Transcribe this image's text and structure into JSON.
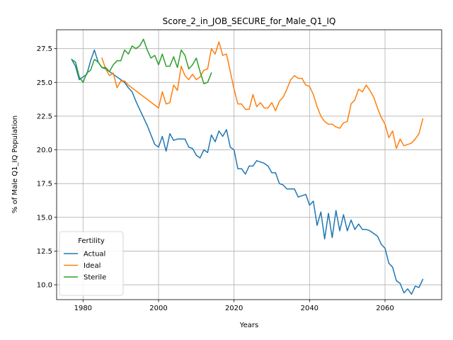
{
  "chart_data": {
    "type": "line",
    "title": "Score_2_in_JOB_SECURE_for_Male_Q1_IQ",
    "xlabel": "Years",
    "ylabel": "% of Male Q1_IQ Population",
    "xlim": [
      1973,
      2075
    ],
    "ylim": [
      8.9,
      28.9
    ],
    "xticks": [
      1980,
      2000,
      2020,
      2040,
      2060
    ],
    "yticks": [
      10.0,
      12.5,
      15.0,
      17.5,
      20.0,
      22.5,
      25.0,
      27.5
    ],
    "ytick_labels": [
      "10.0",
      "12.5",
      "15.0",
      "17.5",
      "20.0",
      "22.5",
      "25.0",
      "27.5"
    ],
    "grid": true,
    "legend": {
      "title": "Fertility",
      "placement": "bottom-left"
    },
    "series": [
      {
        "name": "Actual",
        "color": "#1f77b4",
        "points": [
          [
            1977,
            26.7
          ],
          [
            1978,
            26.2
          ],
          [
            1979,
            25.2
          ],
          [
            1980,
            25.4
          ],
          [
            1981,
            25.6
          ],
          [
            1982,
            26.6
          ],
          [
            1983,
            27.4
          ],
          [
            1984,
            26.5
          ],
          [
            1985,
            26.1
          ],
          [
            1986,
            26.0
          ],
          [
            1987,
            25.8
          ],
          [
            1988,
            25.6
          ],
          [
            1989,
            25.4
          ],
          [
            1990,
            25.2
          ],
          [
            1991,
            25.0
          ],
          [
            1992,
            24.6
          ],
          [
            1993,
            24.3
          ],
          [
            1994,
            23.6
          ],
          [
            1995,
            23.0
          ],
          [
            1996,
            22.4
          ],
          [
            1997,
            21.8
          ],
          [
            1998,
            21.1
          ],
          [
            1999,
            20.4
          ],
          [
            2000,
            20.2
          ],
          [
            2001,
            21.0
          ],
          [
            2002,
            19.9
          ],
          [
            2003,
            21.2
          ],
          [
            2004,
            20.7
          ],
          [
            2005,
            20.8
          ],
          [
            2006,
            20.8
          ],
          [
            2007,
            20.8
          ],
          [
            2008,
            20.2
          ],
          [
            2009,
            20.1
          ],
          [
            2010,
            19.6
          ],
          [
            2011,
            19.4
          ],
          [
            2012,
            20.0
          ],
          [
            2013,
            19.8
          ],
          [
            2014,
            21.1
          ],
          [
            2015,
            20.6
          ],
          [
            2016,
            21.4
          ],
          [
            2017,
            21.0
          ],
          [
            2018,
            21.5
          ],
          [
            2019,
            20.2
          ],
          [
            2020,
            20.0
          ],
          [
            2021,
            18.6
          ],
          [
            2022,
            18.6
          ],
          [
            2023,
            18.2
          ],
          [
            2024,
            18.8
          ],
          [
            2025,
            18.8
          ],
          [
            2026,
            19.2
          ],
          [
            2027,
            19.1
          ],
          [
            2028,
            19.0
          ],
          [
            2029,
            18.8
          ],
          [
            2030,
            18.3
          ],
          [
            2031,
            18.3
          ],
          [
            2032,
            17.5
          ],
          [
            2033,
            17.4
          ],
          [
            2034,
            17.1
          ],
          [
            2035,
            17.1
          ],
          [
            2036,
            17.1
          ],
          [
            2037,
            16.5
          ],
          [
            2038,
            16.6
          ],
          [
            2039,
            16.7
          ],
          [
            2040,
            15.9
          ],
          [
            2041,
            16.2
          ],
          [
            2042,
            14.4
          ],
          [
            2043,
            15.4
          ],
          [
            2044,
            13.4
          ],
          [
            2045,
            15.3
          ],
          [
            2046,
            13.5
          ],
          [
            2047,
            15.5
          ],
          [
            2048,
            14.0
          ],
          [
            2049,
            15.2
          ],
          [
            2050,
            14.0
          ],
          [
            2051,
            14.8
          ],
          [
            2052,
            14.1
          ],
          [
            2053,
            14.5
          ],
          [
            2054,
            14.1
          ],
          [
            2055,
            14.1
          ],
          [
            2056,
            14.0
          ],
          [
            2057,
            13.8
          ],
          [
            2058,
            13.6
          ],
          [
            2059,
            13.0
          ],
          [
            2060,
            12.7
          ],
          [
            2061,
            11.6
          ],
          [
            2062,
            11.3
          ],
          [
            2063,
            10.3
          ],
          [
            2064,
            10.1
          ],
          [
            2065,
            9.4
          ],
          [
            2066,
            9.7
          ],
          [
            2067,
            9.3
          ],
          [
            2068,
            9.9
          ],
          [
            2069,
            9.8
          ],
          [
            2070,
            10.4
          ]
        ]
      },
      {
        "name": "Ideal",
        "color": "#ff7f0e",
        "points": [
          [
            1985,
            26.8
          ],
          [
            1986,
            26.0
          ],
          [
            1987,
            25.5
          ],
          [
            1988,
            25.7
          ],
          [
            1989,
            24.6
          ],
          [
            1990,
            25.1
          ],
          [
            1991,
            25.1
          ],
          [
            1992,
            24.8
          ],
          [
            2000,
            23.1
          ],
          [
            2001,
            24.3
          ],
          [
            2002,
            23.4
          ],
          [
            2003,
            23.5
          ],
          [
            2004,
            24.8
          ],
          [
            2005,
            24.4
          ],
          [
            2006,
            26.2
          ],
          [
            2007,
            25.5
          ],
          [
            2008,
            25.2
          ],
          [
            2009,
            25.6
          ],
          [
            2010,
            25.2
          ],
          [
            2011,
            25.4
          ],
          [
            2012,
            25.9
          ],
          [
            2013,
            26.0
          ],
          [
            2014,
            27.5
          ],
          [
            2015,
            27.1
          ],
          [
            2016,
            28.0
          ],
          [
            2017,
            27.0
          ],
          [
            2018,
            27.1
          ],
          [
            2019,
            25.8
          ],
          [
            2020,
            24.5
          ],
          [
            2021,
            23.4
          ],
          [
            2022,
            23.4
          ],
          [
            2023,
            23.0
          ],
          [
            2024,
            23.0
          ],
          [
            2025,
            24.1
          ],
          [
            2026,
            23.2
          ],
          [
            2027,
            23.5
          ],
          [
            2028,
            23.1
          ],
          [
            2029,
            23.1
          ],
          [
            2030,
            23.5
          ],
          [
            2031,
            22.9
          ],
          [
            2032,
            23.6
          ],
          [
            2033,
            23.9
          ],
          [
            2034,
            24.5
          ],
          [
            2035,
            25.2
          ],
          [
            2036,
            25.5
          ],
          [
            2037,
            25.3
          ],
          [
            2038,
            25.3
          ],
          [
            2039,
            24.8
          ],
          [
            2040,
            24.7
          ],
          [
            2041,
            24.1
          ],
          [
            2042,
            23.2
          ],
          [
            2043,
            22.5
          ],
          [
            2044,
            22.1
          ],
          [
            2045,
            21.9
          ],
          [
            2046,
            21.9
          ],
          [
            2047,
            21.7
          ],
          [
            2048,
            21.6
          ],
          [
            2049,
            22.0
          ],
          [
            2050,
            22.1
          ],
          [
            2051,
            23.4
          ],
          [
            2052,
            23.7
          ],
          [
            2053,
            24.5
          ],
          [
            2054,
            24.3
          ],
          [
            2055,
            24.8
          ],
          [
            2056,
            24.4
          ],
          [
            2057,
            23.9
          ],
          [
            2058,
            23.1
          ],
          [
            2059,
            22.4
          ],
          [
            2060,
            21.9
          ],
          [
            2061,
            20.9
          ],
          [
            2062,
            21.4
          ],
          [
            2063,
            20.1
          ],
          [
            2064,
            20.8
          ],
          [
            2065,
            20.3
          ],
          [
            2066,
            20.4
          ],
          [
            2067,
            20.5
          ],
          [
            2068,
            20.8
          ],
          [
            2069,
            21.2
          ],
          [
            2070,
            22.3
          ]
        ]
      },
      {
        "name": "Sterile",
        "color": "#2ca02c",
        "points": [
          [
            1977,
            26.7
          ],
          [
            1978,
            26.5
          ],
          [
            1979,
            25.4
          ],
          [
            1980,
            25.0
          ],
          [
            1981,
            25.7
          ],
          [
            1982,
            25.9
          ],
          [
            1983,
            26.7
          ],
          [
            1984,
            26.5
          ],
          [
            1985,
            26.1
          ],
          [
            1986,
            26.1
          ],
          [
            1987,
            25.8
          ],
          [
            1988,
            26.3
          ],
          [
            1989,
            26.6
          ],
          [
            1990,
            26.6
          ],
          [
            1991,
            27.4
          ],
          [
            1992,
            27.1
          ],
          [
            1993,
            27.7
          ],
          [
            1994,
            27.5
          ],
          [
            1995,
            27.7
          ],
          [
            1996,
            28.2
          ],
          [
            1997,
            27.4
          ],
          [
            1998,
            26.8
          ],
          [
            1999,
            27.0
          ],
          [
            2000,
            26.3
          ],
          [
            2001,
            27.1
          ],
          [
            2002,
            26.2
          ],
          [
            2003,
            26.2
          ],
          [
            2004,
            26.9
          ],
          [
            2005,
            26.1
          ],
          [
            2006,
            27.4
          ],
          [
            2007,
            27.0
          ],
          [
            2008,
            26.0
          ],
          [
            2009,
            26.3
          ],
          [
            2010,
            26.8
          ],
          [
            2011,
            25.8
          ],
          [
            2012,
            24.9
          ],
          [
            2013,
            25.0
          ],
          [
            2014,
            25.7
          ]
        ]
      }
    ]
  }
}
